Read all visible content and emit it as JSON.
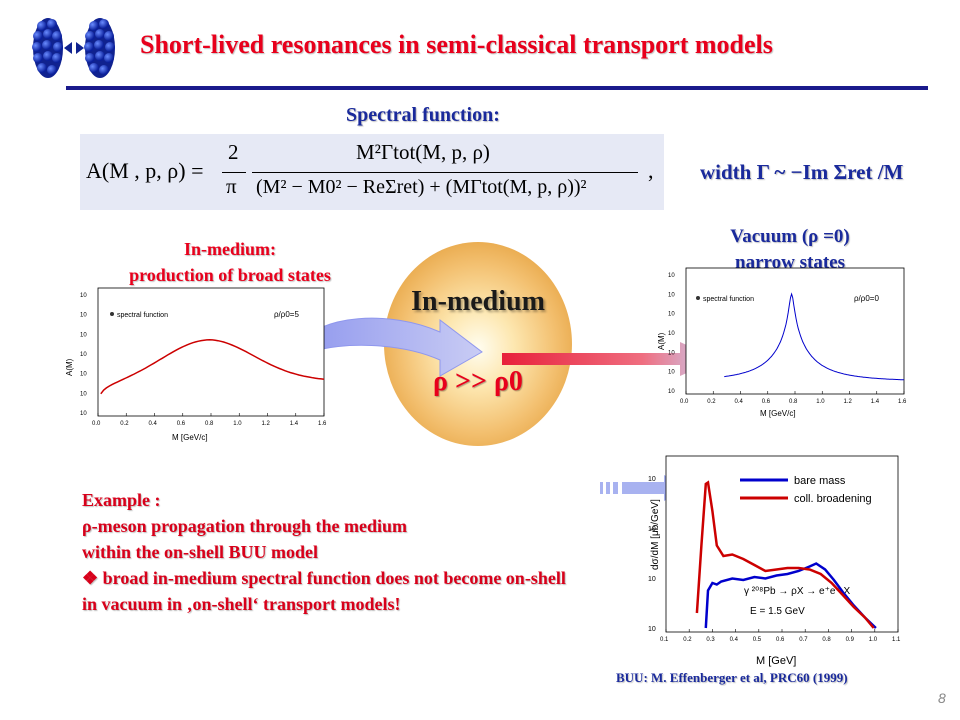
{
  "title": "Short-lived resonances in semi-classical transport models",
  "spectral_label": "Spectral function:",
  "formula": {
    "lhs": "A(M , p, ρ) =",
    "prefactor_num": "2",
    "prefactor_den": "π",
    "numerator": "M²Γtot(M, p, ρ)",
    "denominator": "(M² − M0² − ReΣret) + (MΓtot(M, p, ρ))²",
    "trailing": ","
  },
  "width_label": "width  Γ ~ −Im Σret /M",
  "inmedium_label": {
    "line1": "In-medium:",
    "line2": "production of broad states"
  },
  "vacuum_label": {
    "line1": "Vacuum (ρ =0)",
    "line2": "narrow states"
  },
  "center": {
    "title": "In-medium",
    "relation": "ρ >> ρ0"
  },
  "colors": {
    "title_red": "#e8001c",
    "blue_text": "#1a2a9c",
    "rule": "#1a1a8c",
    "curve_red": "#cc0000",
    "curve_blue": "#0000cc"
  },
  "chart_left": {
    "legend": "spectral function",
    "annotation": "ρ/ρ0=5",
    "ylabel": "A(M)",
    "xlabel": "M  [GeV/c]",
    "yticks": [
      "10",
      "10",
      "10",
      "10",
      "10",
      "10",
      "10"
    ],
    "xticks": [
      "0.0",
      "0.2",
      "0.4",
      "0.6",
      "0.8",
      "1.0",
      "1.2",
      "1.4",
      "1.6"
    ]
  },
  "chart_right": {
    "legend": "spectral function",
    "annotation": "ρ/ρ0=0",
    "ylabel": "A(M)",
    "xlabel": "M  [GeV/c]",
    "yticks": [
      "10",
      "10",
      "10",
      "10",
      "10",
      "10",
      "10"
    ],
    "xticks": [
      "0.0",
      "0.2",
      "0.4",
      "0.6",
      "0.8",
      "1.0",
      "1.2",
      "1.4",
      "1.6"
    ]
  },
  "chart_bottom": {
    "legend1": "bare mass",
    "legend2": "coll. broadening",
    "reaction": "γ ²⁰⁸Pb → ρX → e⁺e⁻ X",
    "energy": "E = 1.5 GeV",
    "ylabel": "dσ/dM [μb/GeV]",
    "xlabel": "M [GeV]",
    "yticks": [
      "10",
      "10",
      "10",
      "10"
    ],
    "xticks": [
      "0.1",
      "0.2",
      "0.3",
      "0.4",
      "0.5",
      "0.6",
      "0.7",
      "0.8",
      "0.9",
      "1.0",
      "1.1"
    ]
  },
  "example": {
    "heading": "Example :",
    "line1": "ρ-meson propagation through the medium",
    "line2": "within the on-shell BUU model",
    "bullet": "broad in-medium spectral function does not become on-shell in vacuum in ‚on-shell‘ transport models!"
  },
  "reference": "BUU: M. Effenberger et al, PRC60 (1999)",
  "page_number": "8"
}
